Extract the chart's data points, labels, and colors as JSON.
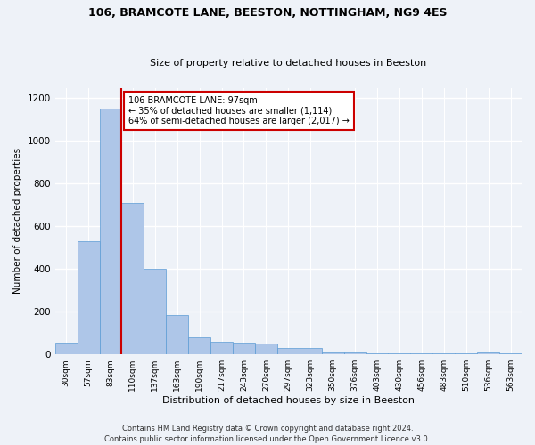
{
  "title1": "106, BRAMCOTE LANE, BEESTON, NOTTINGHAM, NG9 4ES",
  "title2": "Size of property relative to detached houses in Beeston",
  "xlabel": "Distribution of detached houses by size in Beeston",
  "ylabel": "Number of detached properties",
  "footer1": "Contains HM Land Registry data © Crown copyright and database right 2024.",
  "footer2": "Contains public sector information licensed under the Open Government Licence v3.0.",
  "annotation_line1": "106 BRAMCOTE LANE: 97sqm",
  "annotation_line2": "← 35% of detached houses are smaller (1,114)",
  "annotation_line3": "64% of semi-detached houses are larger (2,017) →",
  "bar_color": "#aec6e8",
  "bar_edge_color": "#5b9bd5",
  "redline_color": "#cc0000",
  "annotation_box_color": "#ffffff",
  "annotation_box_edge": "#cc0000",
  "categories": [
    "30sqm",
    "57sqm",
    "83sqm",
    "110sqm",
    "137sqm",
    "163sqm",
    "190sqm",
    "217sqm",
    "243sqm",
    "270sqm",
    "297sqm",
    "323sqm",
    "350sqm",
    "376sqm",
    "403sqm",
    "430sqm",
    "456sqm",
    "483sqm",
    "510sqm",
    "536sqm",
    "563sqm"
  ],
  "values": [
    55,
    530,
    1150,
    710,
    400,
    185,
    80,
    60,
    55,
    50,
    30,
    30,
    10,
    10,
    5,
    5,
    5,
    5,
    5,
    10,
    5
  ],
  "ylim": [
    0,
    1250
  ],
  "yticks": [
    0,
    200,
    400,
    600,
    800,
    1000,
    1200
  ],
  "redline_x": 2.5,
  "background_color": "#eef2f8",
  "grid_color": "#ffffff"
}
